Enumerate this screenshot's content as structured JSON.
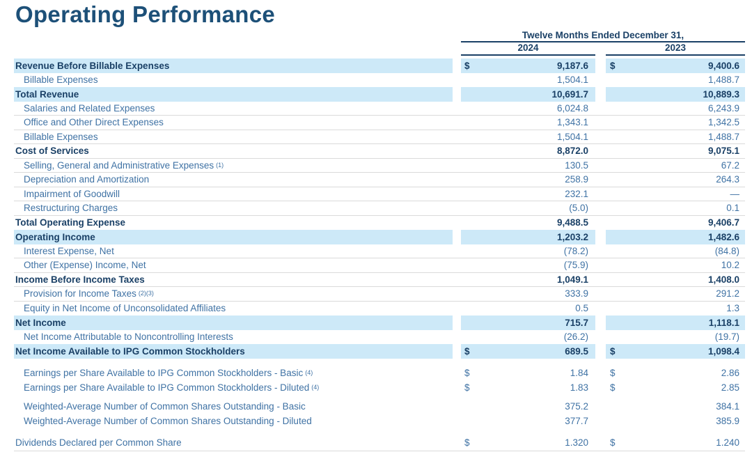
{
  "title": "Operating Performance",
  "table": {
    "period_header": "Twelve Months Ended December 31,",
    "columns": [
      "2024",
      "2023"
    ],
    "currency_symbol": "$",
    "rows": [
      {
        "label": "Revenue Before Billable Expenses",
        "emphasis": true,
        "highlighted": true,
        "dollar": true,
        "values": [
          "9,187.6",
          "9,400.6"
        ]
      },
      {
        "label": "Billable Expenses",
        "indented": true,
        "values": [
          "1,504.1",
          "1,488.7"
        ]
      },
      {
        "label": "Total Revenue",
        "emphasis": true,
        "highlighted": true,
        "values": [
          "10,691.7",
          "10,889.3"
        ]
      },
      {
        "label": "Salaries and Related Expenses",
        "indented": true,
        "underlined": true,
        "values": [
          "6,024.8",
          "6,243.9"
        ]
      },
      {
        "label": "Office and Other Direct Expenses",
        "indented": true,
        "underlined": true,
        "values": [
          "1,343.1",
          "1,342.5"
        ]
      },
      {
        "label": "Billable Expenses",
        "indented": true,
        "underlined": true,
        "values": [
          "1,504.1",
          "1,488.7"
        ]
      },
      {
        "label": "Cost of Services",
        "emphasis": true,
        "underlined": true,
        "values": [
          "8,872.0",
          "9,075.1"
        ]
      },
      {
        "label": "Selling, General and Administrative Expenses",
        "sup": "(1)",
        "indented": true,
        "underlined": true,
        "values": [
          "130.5",
          "67.2"
        ]
      },
      {
        "label": "Depreciation and Amortization",
        "indented": true,
        "underlined": true,
        "values": [
          "258.9",
          "264.3"
        ]
      },
      {
        "label": "Impairment of Goodwill",
        "indented": true,
        "underlined": true,
        "values": [
          "232.1",
          "—"
        ]
      },
      {
        "label": "Restructuring Charges",
        "indented": true,
        "underlined": true,
        "values": [
          "(5.0)",
          "0.1"
        ]
      },
      {
        "label": "Total Operating Expense",
        "emphasis": true,
        "values": [
          "9,488.5",
          "9,406.7"
        ]
      },
      {
        "label": "Operating Income",
        "emphasis": true,
        "highlighted": true,
        "values": [
          "1,203.2",
          "1,482.6"
        ]
      },
      {
        "label": "Interest Expense, Net",
        "indented": true,
        "underlined": true,
        "values": [
          "(78.2)",
          "(84.8)"
        ]
      },
      {
        "label": "Other (Expense) Income, Net",
        "indented": true,
        "underlined": true,
        "values": [
          "(75.9)",
          "10.2"
        ]
      },
      {
        "label": "Income Before Income Taxes",
        "emphasis": true,
        "underlined": true,
        "values": [
          "1,049.1",
          "1,408.0"
        ]
      },
      {
        "label": "Provision for Income Taxes",
        "sup": "(2)(3)",
        "indented": true,
        "underlined": true,
        "values": [
          "333.9",
          "291.2"
        ]
      },
      {
        "label": "Equity in Net Income of Unconsolidated Affiliates",
        "indented": true,
        "values": [
          "0.5",
          "1.3"
        ]
      },
      {
        "label": "Net Income",
        "emphasis": true,
        "highlighted": true,
        "values": [
          "715.7",
          "1,118.1"
        ]
      },
      {
        "label": "Net Income Attributable to Noncontrolling Interests",
        "indented": true,
        "values": [
          "(26.2)",
          "(19.7)"
        ]
      },
      {
        "label": "Net Income Available to IPG Common Stockholders",
        "emphasis": true,
        "highlighted": true,
        "dollar": true,
        "values": [
          "689.5",
          "1,098.4"
        ]
      },
      {
        "label": "Earnings per Share Available to IPG Common Stockholders - Basic",
        "sup": "(4)",
        "indented": true,
        "dollar": true,
        "spacer_before": "a",
        "values": [
          "1.84",
          "2.86"
        ]
      },
      {
        "label": "Earnings per Share Available to IPG Common Stockholders - Diluted",
        "sup": "(4)",
        "indented": true,
        "dollar": true,
        "values": [
          "1.83",
          "2.85"
        ]
      },
      {
        "label": "Weighted-Average Number of Common Shares Outstanding - Basic",
        "indented": true,
        "spacer_before": "b",
        "values": [
          "375.2",
          "384.1"
        ]
      },
      {
        "label": "Weighted-Average Number of Common Shares Outstanding - Diluted",
        "indented": true,
        "values": [
          "377.7",
          "385.9"
        ]
      },
      {
        "label": "Dividends Declared per Common Share",
        "dollar": true,
        "spacer_before": "c",
        "values": [
          "1.320",
          "1.240"
        ]
      }
    ]
  },
  "colors": {
    "title": "#1d5078",
    "emphasis_text": "#1a4066",
    "body_text": "#3f72a4",
    "row_highlight": "#cde9f8",
    "divider": "#dadada"
  }
}
